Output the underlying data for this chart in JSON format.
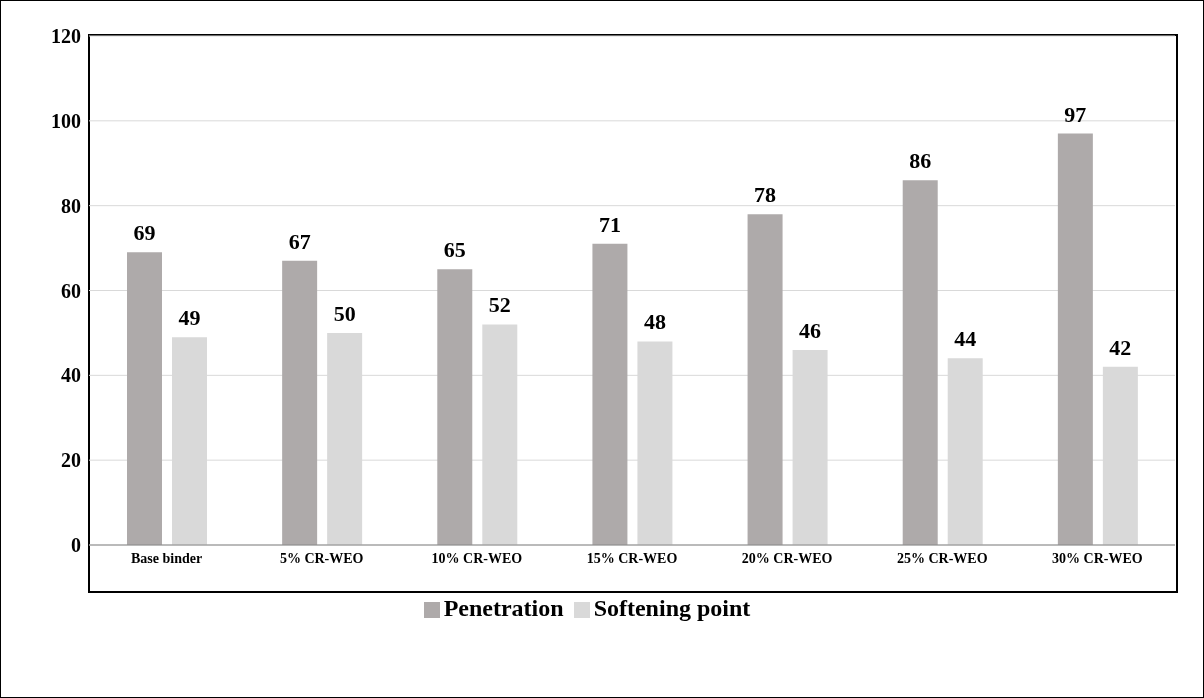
{
  "chart_data": {
    "type": "bar",
    "categories": [
      "Base binder",
      "5% CR-WEO",
      "10% CR-WEO",
      "15% CR-WEO",
      "20% CR-WEO",
      "25% CR-WEO",
      "30% CR-WEO"
    ],
    "series": [
      {
        "name": "Penetration",
        "color": "#aeaaaa",
        "values": [
          69,
          67,
          65,
          71,
          78,
          86,
          97
        ]
      },
      {
        "name": "Softening point",
        "color": "#d9d9d9",
        "values": [
          49,
          50,
          52,
          48,
          46,
          44,
          42
        ]
      }
    ],
    "ylim": [
      0,
      120
    ],
    "yticks": [
      0,
      20,
      40,
      60,
      80,
      100,
      120
    ],
    "grid": "y",
    "legend": "bottom",
    "data_labels": true
  }
}
